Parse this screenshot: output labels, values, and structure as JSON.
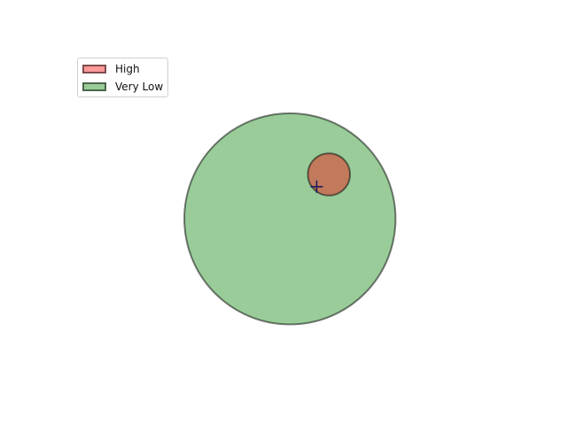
{
  "chart_data": {
    "type": "venn",
    "title": "",
    "xlabel": "",
    "ylabel": "",
    "grid": false,
    "axes_visible": false,
    "legend_position": "upper-left",
    "fill_alpha": 0.4,
    "edge_color": "#000000",
    "edge_alpha": 0.5,
    "series": [
      {
        "name": "High",
        "color": "#ff0000",
        "center": [
          1.78,
          2.03
        ],
        "radius": 0.96
      },
      {
        "name": "Very Low",
        "color": "#008000",
        "center": [
          0.0,
          0.0
        ],
        "radius": 4.82
      }
    ],
    "marker": {
      "symbol": "+",
      "color": "#1f1a5c",
      "at": [
        1.22,
        1.47
      ]
    },
    "xlim": [
      -5.0,
      5.06
    ],
    "ylim": [
      -7.27,
      7.65
    ]
  }
}
